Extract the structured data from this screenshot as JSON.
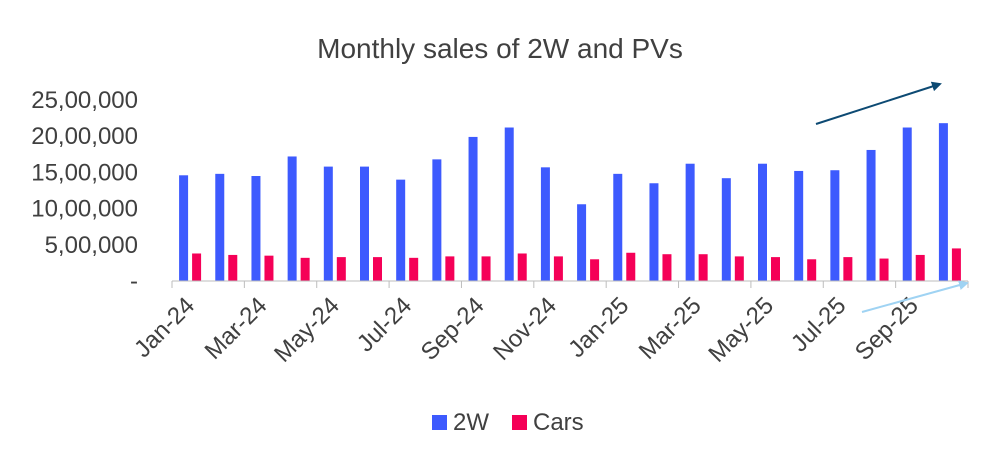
{
  "chart_data": {
    "type": "bar",
    "title": "Monthly sales of 2W and PVs",
    "xlabel": "",
    "ylabel": "",
    "ylim": [
      0,
      2500000
    ],
    "y_ticks": [
      0,
      500000,
      1000000,
      1500000,
      2000000,
      2500000
    ],
    "y_tick_labels": [
      "-",
      "5,00,000",
      "10,00,000",
      "15,00,000",
      "20,00,000",
      "25,00,000"
    ],
    "categories": [
      "Jan-24",
      "Feb-24",
      "Mar-24",
      "Apr-24",
      "May-24",
      "Jun-24",
      "Jul-24",
      "Aug-24",
      "Sep-24",
      "Oct-24",
      "Nov-24",
      "Dec-24",
      "Jan-25",
      "Feb-25",
      "Mar-25",
      "Apr-25",
      "May-25",
      "Jun-25",
      "Jul-25",
      "Aug-25",
      "Sep-25",
      "Oct-25"
    ],
    "x_tick_labels": [
      "Jan-24",
      "",
      "Mar-24",
      "",
      "May-24",
      "",
      "Jul-24",
      "",
      "Sep-24",
      "",
      "Nov-24",
      "",
      "Jan-25",
      "",
      "Mar-25",
      "",
      "May-25",
      "",
      "Jul-25",
      "",
      "Sep-25",
      ""
    ],
    "series": [
      {
        "name": "2W",
        "color": "#3d5afe",
        "values": [
          1460000,
          1480000,
          1450000,
          1720000,
          1580000,
          1580000,
          1400000,
          1680000,
          1990000,
          2120000,
          1570000,
          1060000,
          1480000,
          1350000,
          1620000,
          1420000,
          1620000,
          1520000,
          1530000,
          1810000,
          2120000,
          2180000
        ]
      },
      {
        "name": "Cars",
        "color": "#f50057",
        "values": [
          380000,
          360000,
          350000,
          320000,
          330000,
          330000,
          320000,
          340000,
          340000,
          380000,
          340000,
          300000,
          390000,
          370000,
          370000,
          340000,
          330000,
          300000,
          330000,
          310000,
          360000,
          450000
        ]
      }
    ],
    "legend": {
      "position": "bottom",
      "entries": [
        "2W",
        "Cars"
      ]
    },
    "grid": false,
    "annotations": [
      {
        "type": "arrow",
        "color": "#0d4a73",
        "meaning": "upward trend arrow"
      },
      {
        "type": "arrow",
        "color": "#9fd3f3",
        "meaning": "upward trend arrow"
      }
    ],
    "axis_color": "#bdbdbd",
    "text_color": "#404040"
  }
}
